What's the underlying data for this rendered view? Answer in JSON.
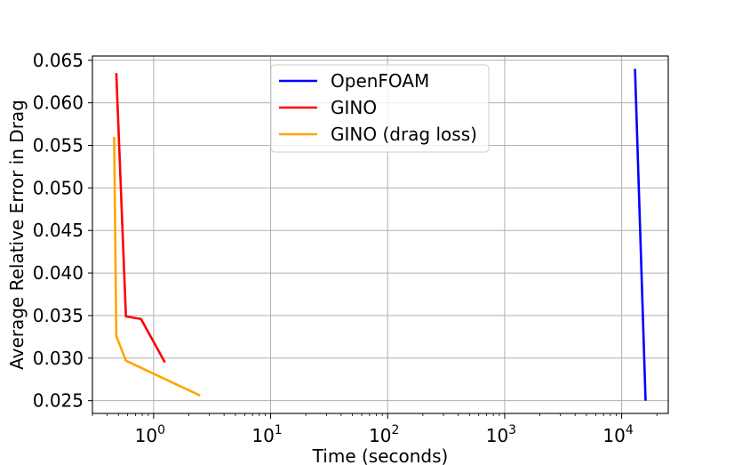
{
  "chart_data": {
    "type": "line",
    "xlabel": "Time (seconds)",
    "ylabel": "Average Relative Error in Drag",
    "xscale": "log",
    "xlim": [
      0.3,
      25000
    ],
    "ylim": [
      0.0235,
      0.0655
    ],
    "grid": true,
    "legend_position": "top-center",
    "x_ticks": [
      {
        "base": "10",
        "exp": "0",
        "value": 1
      },
      {
        "base": "10",
        "exp": "1",
        "value": 10
      },
      {
        "base": "10",
        "exp": "2",
        "value": 100
      },
      {
        "base": "10",
        "exp": "3",
        "value": 1000
      },
      {
        "base": "10",
        "exp": "4",
        "value": 10000
      }
    ],
    "y_ticks": [
      {
        "label": "0.065",
        "value": 0.065
      },
      {
        "label": "0.060",
        "value": 0.06
      },
      {
        "label": "0.055",
        "value": 0.055
      },
      {
        "label": "0.050",
        "value": 0.05
      },
      {
        "label": "0.045",
        "value": 0.045
      },
      {
        "label": "0.040",
        "value": 0.04
      },
      {
        "label": "0.035",
        "value": 0.035
      },
      {
        "label": "0.030",
        "value": 0.03
      },
      {
        "label": "0.025",
        "value": 0.025
      }
    ],
    "series": [
      {
        "name": "OpenFOAM",
        "color": "#0000ff",
        "x": [
          13000,
          16000
        ],
        "y": [
          0.064,
          0.025
        ]
      },
      {
        "name": "GINO",
        "color": "#ff0000",
        "x": [
          0.48,
          0.58,
          0.78,
          1.25
        ],
        "y": [
          0.0635,
          0.0349,
          0.0346,
          0.0295
        ]
      },
      {
        "name": "GINO (drag loss)",
        "color": "#ffa500",
        "x": [
          0.46,
          0.48,
          0.58,
          2.5
        ],
        "y": [
          0.056,
          0.0326,
          0.0297,
          0.0256
        ]
      }
    ]
  }
}
